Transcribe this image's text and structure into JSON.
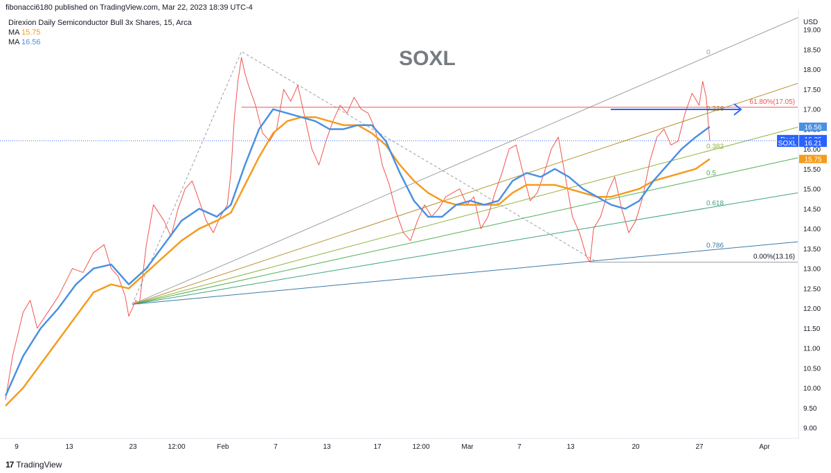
{
  "header": {
    "published": "fibonacci6180 published on TradingView.com, Mar 22, 2023 18:39 UTC-4"
  },
  "legend": {
    "symbol_line": "Direxion Daily Semiconductor Bull 3x Shares, 15, Arca",
    "ma1_label": "MA",
    "ma1_value": "15.75",
    "ma1_color": "#f59b1c",
    "ma2_label": "MA",
    "ma2_value": "16.56",
    "ma2_color": "#4a90e2"
  },
  "footer": {
    "brand": "TradingView"
  },
  "chart_data": {
    "type": "line",
    "title": "SOXL",
    "currency": "USD",
    "ylim": [
      8.75,
      19.5
    ],
    "y_ticks": [
      9.0,
      9.5,
      10.0,
      10.5,
      11.0,
      11.5,
      12.0,
      12.5,
      13.0,
      13.5,
      14.0,
      14.5,
      15.0,
      15.5,
      16.0,
      16.5,
      17.0,
      17.5,
      18.0,
      18.5,
      19.0
    ],
    "x_tick_labels": [
      "9",
      "13",
      "23",
      "12:00",
      "Feb",
      "7",
      "13",
      "17",
      "12:00",
      "Mar",
      "7",
      "13",
      "20",
      "27",
      "Apr"
    ],
    "price_series": {
      "name": "SOXL",
      "color": "#ef5350",
      "points": [
        [
          0,
          9.7
        ],
        [
          2,
          10.8
        ],
        [
          5,
          11.9
        ],
        [
          7,
          12.2
        ],
        [
          9,
          11.5
        ],
        [
          12,
          11.9
        ],
        [
          15,
          12.3
        ],
        [
          19,
          13.0
        ],
        [
          22,
          12.9
        ],
        [
          25,
          13.4
        ],
        [
          28,
          13.6
        ],
        [
          30,
          13.0
        ],
        [
          32,
          12.8
        ],
        [
          34,
          12.3
        ],
        [
          35,
          11.8
        ],
        [
          37,
          12.2
        ],
        [
          38,
          12.1
        ],
        [
          40,
          13.6
        ],
        [
          42,
          14.6
        ],
        [
          45,
          14.2
        ],
        [
          47,
          13.8
        ],
        [
          49,
          14.5
        ],
        [
          51,
          15.0
        ],
        [
          53,
          15.2
        ],
        [
          55,
          14.7
        ],
        [
          57,
          14.2
        ],
        [
          59,
          13.9
        ],
        [
          61,
          14.3
        ],
        [
          63,
          14.6
        ],
        [
          64,
          15.4
        ],
        [
          65,
          16.8
        ],
        [
          66,
          17.7
        ],
        [
          67,
          18.3
        ],
        [
          68,
          17.9
        ],
        [
          69,
          17.6
        ],
        [
          71,
          17.1
        ],
        [
          73,
          16.4
        ],
        [
          75,
          16.2
        ],
        [
          77,
          16.5
        ],
        [
          79,
          17.5
        ],
        [
          81,
          17.2
        ],
        [
          83,
          17.6
        ],
        [
          85,
          16.8
        ],
        [
          87,
          16.0
        ],
        [
          89,
          15.6
        ],
        [
          91,
          16.2
        ],
        [
          93,
          16.7
        ],
        [
          95,
          17.1
        ],
        [
          97,
          16.9
        ],
        [
          99,
          17.3
        ],
        [
          101,
          17.0
        ],
        [
          103,
          16.9
        ],
        [
          105,
          16.5
        ],
        [
          107,
          15.6
        ],
        [
          109,
          15.1
        ],
        [
          111,
          14.4
        ],
        [
          113,
          13.9
        ],
        [
          115,
          13.7
        ],
        [
          117,
          14.2
        ],
        [
          119,
          14.6
        ],
        [
          121,
          14.3
        ],
        [
          123,
          14.5
        ],
        [
          125,
          14.8
        ],
        [
          127,
          14.9
        ],
        [
          129,
          15.0
        ],
        [
          131,
          14.6
        ],
        [
          133,
          14.8
        ],
        [
          135,
          14.0
        ],
        [
          137,
          14.3
        ],
        [
          139,
          14.9
        ],
        [
          141,
          15.4
        ],
        [
          143,
          16.0
        ],
        [
          145,
          16.1
        ],
        [
          147,
          15.4
        ],
        [
          149,
          14.7
        ],
        [
          151,
          14.9
        ],
        [
          153,
          15.4
        ],
        [
          155,
          16.0
        ],
        [
          157,
          16.3
        ],
        [
          159,
          15.3
        ],
        [
          161,
          14.3
        ],
        [
          163,
          13.9
        ],
        [
          165,
          13.3
        ],
        [
          166,
          13.16
        ],
        [
          167,
          14.0
        ],
        [
          169,
          14.3
        ],
        [
          171,
          14.9
        ],
        [
          173,
          15.3
        ],
        [
          175,
          14.5
        ],
        [
          177,
          13.9
        ],
        [
          179,
          14.2
        ],
        [
          181,
          14.8
        ],
        [
          183,
          15.7
        ],
        [
          185,
          16.3
        ],
        [
          187,
          16.5
        ],
        [
          189,
          16.1
        ],
        [
          191,
          16.2
        ],
        [
          193,
          16.9
        ],
        [
          195,
          17.4
        ],
        [
          197,
          17.1
        ],
        [
          198,
          17.7
        ],
        [
          199,
          17.3
        ],
        [
          200,
          16.21
        ]
      ]
    },
    "ma_fast": {
      "name": "MA",
      "value": 16.56,
      "color": "#4a90e2",
      "points": [
        [
          0,
          9.8
        ],
        [
          5,
          10.8
        ],
        [
          10,
          11.5
        ],
        [
          15,
          12.0
        ],
        [
          20,
          12.6
        ],
        [
          25,
          13.0
        ],
        [
          30,
          13.1
        ],
        [
          35,
          12.6
        ],
        [
          40,
          13.0
        ],
        [
          45,
          13.6
        ],
        [
          50,
          14.2
        ],
        [
          55,
          14.5
        ],
        [
          60,
          14.3
        ],
        [
          64,
          14.6
        ],
        [
          68,
          15.6
        ],
        [
          72,
          16.5
        ],
        [
          76,
          17.0
        ],
        [
          80,
          16.9
        ],
        [
          84,
          16.8
        ],
        [
          88,
          16.7
        ],
        [
          92,
          16.5
        ],
        [
          96,
          16.5
        ],
        [
          100,
          16.6
        ],
        [
          104,
          16.6
        ],
        [
          108,
          16.2
        ],
        [
          112,
          15.4
        ],
        [
          116,
          14.7
        ],
        [
          120,
          14.3
        ],
        [
          124,
          14.3
        ],
        [
          128,
          14.6
        ],
        [
          132,
          14.7
        ],
        [
          136,
          14.6
        ],
        [
          140,
          14.7
        ],
        [
          144,
          15.2
        ],
        [
          148,
          15.4
        ],
        [
          152,
          15.3
        ],
        [
          156,
          15.5
        ],
        [
          160,
          15.3
        ],
        [
          164,
          15.0
        ],
        [
          168,
          14.8
        ],
        [
          172,
          14.6
        ],
        [
          176,
          14.5
        ],
        [
          180,
          14.7
        ],
        [
          184,
          15.2
        ],
        [
          188,
          15.6
        ],
        [
          192,
          16.0
        ],
        [
          196,
          16.3
        ],
        [
          200,
          16.56
        ]
      ]
    },
    "ma_slow": {
      "name": "MA",
      "value": 15.75,
      "color": "#f59b1c",
      "points": [
        [
          0,
          9.55
        ],
        [
          5,
          10.0
        ],
        [
          10,
          10.6
        ],
        [
          15,
          11.2
        ],
        [
          20,
          11.8
        ],
        [
          25,
          12.4
        ],
        [
          30,
          12.6
        ],
        [
          35,
          12.5
        ],
        [
          40,
          12.9
        ],
        [
          45,
          13.3
        ],
        [
          50,
          13.7
        ],
        [
          55,
          14.0
        ],
        [
          60,
          14.2
        ],
        [
          64,
          14.4
        ],
        [
          68,
          15.1
        ],
        [
          72,
          15.8
        ],
        [
          76,
          16.4
        ],
        [
          80,
          16.7
        ],
        [
          84,
          16.8
        ],
        [
          88,
          16.8
        ],
        [
          92,
          16.7
        ],
        [
          96,
          16.6
        ],
        [
          100,
          16.6
        ],
        [
          104,
          16.4
        ],
        [
          108,
          16.1
        ],
        [
          112,
          15.6
        ],
        [
          116,
          15.2
        ],
        [
          120,
          14.9
        ],
        [
          124,
          14.7
        ],
        [
          128,
          14.6
        ],
        [
          132,
          14.6
        ],
        [
          136,
          14.6
        ],
        [
          140,
          14.6
        ],
        [
          144,
          14.9
        ],
        [
          148,
          15.1
        ],
        [
          152,
          15.1
        ],
        [
          156,
          15.1
        ],
        [
          160,
          15.0
        ],
        [
          164,
          14.9
        ],
        [
          168,
          14.8
        ],
        [
          172,
          14.8
        ],
        [
          176,
          14.9
        ],
        [
          180,
          15.0
        ],
        [
          184,
          15.2
        ],
        [
          188,
          15.3
        ],
        [
          192,
          15.4
        ],
        [
          196,
          15.5
        ],
        [
          200,
          15.75
        ]
      ]
    },
    "fib_fan": {
      "origin": [
        36,
        12.1
      ],
      "levels": [
        {
          "label": "0",
          "color": "#9b9ea3",
          "end": [
            225,
            19.3
          ]
        },
        {
          "label": "0.236",
          "color": "#b5912e",
          "end": [
            225,
            17.65
          ]
        },
        {
          "label": "0.382",
          "color": "#8fb33a",
          "end": [
            225,
            16.55
          ]
        },
        {
          "label": "0.5",
          "color": "#4caf50",
          "end": [
            225,
            15.78
          ]
        },
        {
          "label": "0.618",
          "color": "#3aa37a",
          "end": [
            225,
            14.9
          ]
        },
        {
          "label": "0.786",
          "color": "#3a78a8",
          "end": [
            225,
            13.67
          ]
        }
      ]
    },
    "fib_level_retrace": {
      "label": "61.80%(17.05)",
      "value": 17.05,
      "color": "#ef5350"
    },
    "fib_level_low": {
      "label": "0.00%(13.16)",
      "value": 13.16,
      "color": "#9b9ea3"
    },
    "price_labels": [
      {
        "name": "MA",
        "text": "16.56",
        "value": 16.56,
        "bg": "#4a90e2"
      },
      {
        "name": "Post",
        "text": "16.25",
        "value": 16.25,
        "bg": "#2962ff"
      },
      {
        "name": "SOXL",
        "text": "16.21",
        "value": 16.21,
        "bg": "#2962ff"
      },
      {
        "name": "MA",
        "text": "15.75",
        "value": 15.75,
        "bg": "#f59b1c"
      }
    ],
    "post_tag": "Post",
    "soxl_tag": "SOXL",
    "legend_placement": "top-left",
    "grid": false
  }
}
